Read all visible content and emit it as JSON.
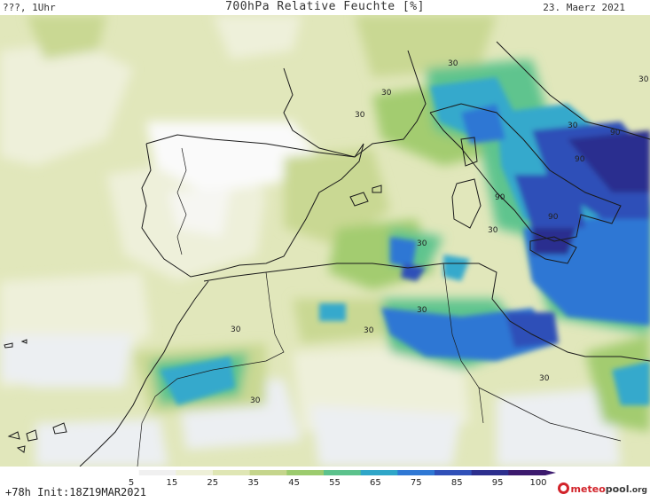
{
  "header": {
    "left": "???, 1Uhr",
    "title": "700hPa Relative Feuchte [%]",
    "date": "23. Maerz 2021"
  },
  "map": {
    "contour_labels": [
      {
        "text": "30"
      },
      {
        "text": "30"
      },
      {
        "text": "30"
      },
      {
        "text": "30"
      },
      {
        "text": "30"
      },
      {
        "text": "30"
      },
      {
        "text": "30"
      },
      {
        "text": "30"
      },
      {
        "text": "30"
      },
      {
        "text": "30"
      },
      {
        "text": "30"
      },
      {
        "text": "30"
      },
      {
        "text": "90"
      },
      {
        "text": "90"
      },
      {
        "text": "90"
      },
      {
        "text": "90"
      }
    ]
  },
  "colorbar": {
    "ticks": [
      "5",
      "15",
      "25",
      "35",
      "45",
      "55",
      "65",
      "75",
      "85",
      "95",
      "100"
    ],
    "colors": [
      "#ffffff",
      "#f0f0f0",
      "#eef0d8",
      "#dfe6b4",
      "#c5d58c",
      "#9ccb6e",
      "#5cc28c",
      "#2fa6c8",
      "#2f78d4",
      "#3050b8",
      "#2d2f8e",
      "#3c1a6e"
    ]
  },
  "footer": {
    "init": "+78h Init:18Z19MAR2021",
    "logo_a": "meteo",
    "logo_b": "pool",
    "logo_c": ".org"
  },
  "palette": {
    "c_white": "#fafafa",
    "c_grey": "#eceff2",
    "c_pale": "#eef0da",
    "c_light": "#dfe6b6",
    "c_mid": "#c9d893",
    "c_green": "#a3cc70",
    "c_teal": "#5ec48e",
    "c_cyan": "#34a9cc",
    "c_blue": "#2f77d4",
    "c_dblue": "#2e4fb8",
    "c_navy": "#2b2f8f"
  }
}
